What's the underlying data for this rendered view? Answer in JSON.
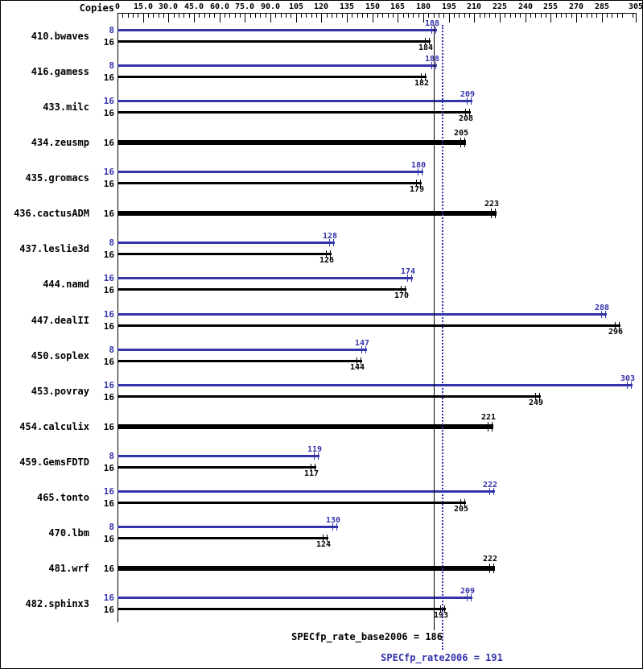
{
  "header": {
    "copies_label": "Copies"
  },
  "chart_data": {
    "type": "bar",
    "orientation": "horizontal",
    "xlim": [
      0,
      305
    ],
    "grid": false,
    "axis": {
      "labels": [
        "0",
        "15.0",
        "30.0",
        "45.0",
        "60.0",
        "75.0",
        "90.0",
        "105",
        "120",
        "135",
        "150",
        "165",
        "180",
        "195",
        "210",
        "225",
        "240",
        "255",
        "270",
        "285",
        "305"
      ],
      "values": [
        0,
        15,
        30,
        45,
        60,
        75,
        90,
        105,
        120,
        135,
        150,
        165,
        180,
        195,
        210,
        225,
        240,
        255,
        270,
        285,
        305
      ]
    },
    "colors": {
      "peak": "#3333aa",
      "base": "#000000"
    },
    "benchmarks": [
      {
        "name": "410.bwaves",
        "bars": [
          {
            "type": "peak",
            "copies": "8",
            "value": 188
          },
          {
            "type": "base",
            "copies": "16",
            "value": 184
          }
        ]
      },
      {
        "name": "416.gamess",
        "bars": [
          {
            "type": "peak",
            "copies": "8",
            "value": 188
          },
          {
            "type": "base",
            "copies": "16",
            "value": 182
          }
        ]
      },
      {
        "name": "433.milc",
        "bars": [
          {
            "type": "peak",
            "copies": "16",
            "value": 209
          },
          {
            "type": "base",
            "copies": "16",
            "value": 208
          }
        ]
      },
      {
        "name": "434.zeusmp",
        "bars": [
          {
            "type": "base-only",
            "copies": "16",
            "value": 205
          }
        ]
      },
      {
        "name": "435.gromacs",
        "bars": [
          {
            "type": "peak",
            "copies": "16",
            "value": 180
          },
          {
            "type": "base",
            "copies": "16",
            "value": 179
          }
        ]
      },
      {
        "name": "436.cactusADM",
        "bars": [
          {
            "type": "base-only",
            "copies": "16",
            "value": 223
          }
        ]
      },
      {
        "name": "437.leslie3d",
        "bars": [
          {
            "type": "peak",
            "copies": "8",
            "value": 128
          },
          {
            "type": "base",
            "copies": "16",
            "value": 126
          }
        ]
      },
      {
        "name": "444.namd",
        "bars": [
          {
            "type": "peak",
            "copies": "16",
            "value": 174
          },
          {
            "type": "base",
            "copies": "16",
            "value": 170
          }
        ]
      },
      {
        "name": "447.dealII",
        "bars": [
          {
            "type": "peak",
            "copies": "16",
            "value": 288
          },
          {
            "type": "base",
            "copies": "16",
            "value": 296
          }
        ]
      },
      {
        "name": "450.soplex",
        "bars": [
          {
            "type": "peak",
            "copies": "8",
            "value": 147
          },
          {
            "type": "base",
            "copies": "16",
            "value": 144
          }
        ]
      },
      {
        "name": "453.povray",
        "bars": [
          {
            "type": "peak",
            "copies": "16",
            "value": 303
          },
          {
            "type": "base",
            "copies": "16",
            "value": 249
          }
        ]
      },
      {
        "name": "454.calculix",
        "bars": [
          {
            "type": "base-only",
            "copies": "16",
            "value": 221
          }
        ]
      },
      {
        "name": "459.GemsFDTD",
        "bars": [
          {
            "type": "peak",
            "copies": "8",
            "value": 119
          },
          {
            "type": "base",
            "copies": "16",
            "value": 117
          }
        ]
      },
      {
        "name": "465.tonto",
        "bars": [
          {
            "type": "peak",
            "copies": "16",
            "value": 222
          },
          {
            "type": "base",
            "copies": "16",
            "value": 205
          }
        ]
      },
      {
        "name": "470.lbm",
        "bars": [
          {
            "type": "peak",
            "copies": "8",
            "value": 130
          },
          {
            "type": "base",
            "copies": "16",
            "value": 124
          }
        ]
      },
      {
        "name": "481.wrf",
        "bars": [
          {
            "type": "base-only",
            "copies": "16",
            "value": 222
          }
        ]
      },
      {
        "name": "482.sphinx3",
        "bars": [
          {
            "type": "peak",
            "copies": "16",
            "value": 209
          },
          {
            "type": "base",
            "copies": "16",
            "value": 193
          }
        ]
      }
    ],
    "reference_lines": [
      {
        "label": "SPECfp_rate_base2006 = 186",
        "value": 186,
        "style": "solid",
        "color": "#000000"
      },
      {
        "label": "SPECfp_rate2006 = 191",
        "value": 191,
        "style": "dotted",
        "color": "#3333aa"
      }
    ]
  }
}
